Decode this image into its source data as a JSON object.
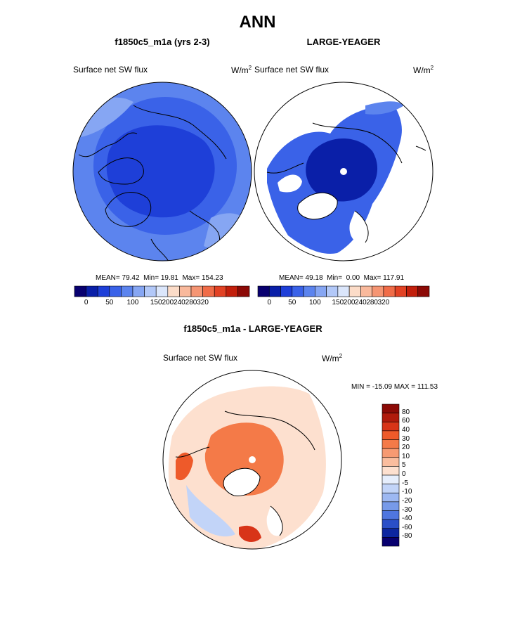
{
  "figure": {
    "title": "ANN"
  },
  "chart_data": [
    {
      "type": "heatmap",
      "projection": "north polar stereographic",
      "title": "f1850c5_m1a (yrs 2-3)",
      "variable": "Surface net SW flux",
      "units_base": "W/m",
      "units_exp": "2",
      "stats": {
        "mean_label": "MEAN=",
        "mean": "79.42",
        "min_label": "Min=",
        "min": "19.81",
        "max_label": "Max=",
        "max": "154.23"
      },
      "colorbar": {
        "orientation": "horizontal",
        "tick_labels": [
          "0",
          "50",
          "100",
          "150",
          "200",
          "240",
          "280",
          "320"
        ],
        "colors": [
          "#08006f",
          "#0a1fa8",
          "#1e3fd8",
          "#3a62e8",
          "#5c84ee",
          "#86a6f3",
          "#b2c8f8",
          "#dbe6fb",
          "#fcdcc8",
          "#f9b99c",
          "#f59573",
          "#f06c48",
          "#e24224",
          "#c21f0c",
          "#8c0a06"
        ]
      }
    },
    {
      "type": "heatmap",
      "projection": "north polar stereographic",
      "title": "LARGE-YEAGER",
      "variable": "Surface net SW flux",
      "units_base": "W/m",
      "units_exp": "2",
      "stats": {
        "mean_label": "MEAN=",
        "mean": "49.18",
        "min_label": "Min=",
        "min": "0.00",
        "max_label": "Max=",
        "max": "117.91"
      },
      "colorbar": {
        "orientation": "horizontal",
        "tick_labels": [
          "0",
          "50",
          "100",
          "150",
          "200",
          "240",
          "280",
          "320"
        ],
        "colors": [
          "#08006f",
          "#0a1fa8",
          "#1e3fd8",
          "#3a62e8",
          "#5c84ee",
          "#86a6f3",
          "#b2c8f8",
          "#dbe6fb",
          "#fcdcc8",
          "#f9b99c",
          "#f59573",
          "#f06c48",
          "#e24224",
          "#c21f0c",
          "#8c0a06"
        ]
      }
    },
    {
      "type": "heatmap",
      "projection": "north polar stereographic",
      "title": "f1850c5_m1a - LARGE-YEAGER",
      "variable": "Surface net SW flux",
      "units_base": "W/m",
      "units_exp": "2",
      "stats_text": "MIN = -15.09 MAX = 111.53",
      "colorbar": {
        "orientation": "vertical",
        "tick_labels_top_to_bottom": [
          "80",
          "60",
          "40",
          "30",
          "20",
          "10",
          "5",
          "0",
          "-5",
          "-10",
          "-20",
          "-30",
          "-40",
          "-60",
          "-80"
        ],
        "colors_top_to_bottom": [
          "#8c0a06",
          "#b01a0c",
          "#d83418",
          "#ee5a2a",
          "#f47a48",
          "#f79a72",
          "#fabd9e",
          "#fde0cf",
          "#e6eefc",
          "#c2d4f8",
          "#9db8f2",
          "#779ae9",
          "#4f76df",
          "#2a4fc8",
          "#0c26a0",
          "#08006f"
        ]
      }
    }
  ]
}
